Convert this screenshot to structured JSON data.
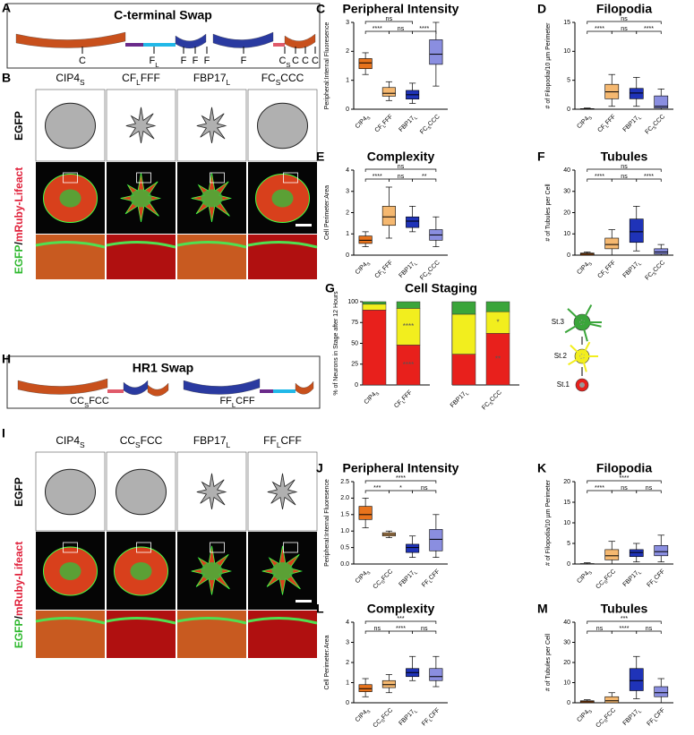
{
  "panel_a": {
    "letter": "A",
    "title": "C-terminal Swap",
    "domain_labels": [
      [
        "C"
      ],
      [
        "F",
        "L"
      ],
      [
        "F"
      ],
      [
        "F"
      ],
      [
        "F"
      ],
      [
        "F"
      ],
      [
        "C",
        "S"
      ],
      [
        "C"
      ],
      [
        "C"
      ],
      [
        "C"
      ]
    ]
  },
  "panel_b": {
    "letter": "B",
    "columns": [
      [
        "CIP4",
        "S"
      ],
      [
        "CF",
        "L",
        "FFF"
      ],
      [
        "FBP17",
        "L"
      ],
      [
        "FC",
        "S",
        "CCC"
      ]
    ],
    "row_label": "EGFP",
    "merge_label": [
      "EGFP",
      "/",
      "mRuby-Lifeact"
    ]
  },
  "panel_h": {
    "letter": "H",
    "title": "HR1 Swap",
    "construct_labels": [
      [
        "CC",
        "S",
        "FCC"
      ],
      [
        "FF",
        "L",
        "CFF"
      ]
    ]
  },
  "panel_i": {
    "letter": "I",
    "columns": [
      [
        "CIP4",
        "S"
      ],
      [
        "CC",
        "S",
        "FCC"
      ],
      [
        "FBP17",
        "L"
      ],
      [
        "FF",
        "L",
        "CFF"
      ]
    ],
    "row_label": "EGFP",
    "merge_label": [
      "EGFP",
      "/",
      "mRuby-Lifeact"
    ]
  },
  "chart_data": [
    {
      "letter": "C",
      "type": "box",
      "title": "Peripheral Intensity",
      "y_label": "Peripheral:Internal Fluoresence",
      "categories": [
        [
          "CIP4",
          "S"
        ],
        [
          "CF",
          "L",
          "FFF"
        ],
        [
          "FBP17",
          "L"
        ],
        [
          "FC",
          "S",
          "CCC"
        ]
      ],
      "colors": [
        "#e8731c",
        "#f5b870",
        "#1f33b8",
        "#8a8ee0"
      ],
      "boxes": [
        [
          1.2,
          1.4,
          1.6,
          1.75,
          1.95
        ],
        [
          0.3,
          0.45,
          0.55,
          0.75,
          0.95
        ],
        [
          0.2,
          0.35,
          0.5,
          0.65,
          0.9
        ],
        [
          0.8,
          1.55,
          1.9,
          2.4,
          3.0
        ]
      ],
      "ylim": [
        0,
        3
      ],
      "yticks": [
        0,
        1,
        2,
        3
      ],
      "brackets": [
        {
          "from": 0,
          "to": 2,
          "label": "ns"
        },
        {
          "from": 0,
          "to": 1,
          "label": "****"
        },
        {
          "from": 1,
          "to": 2,
          "label": "ns"
        },
        {
          "from": 2,
          "to": 3,
          "label": "****"
        }
      ]
    },
    {
      "letter": "D",
      "type": "box",
      "title": "Filopodia",
      "y_label": "# of Filopodia/10 µm Perimeter",
      "categories": [
        [
          "CIP4",
          "S"
        ],
        [
          "CF",
          "L",
          "FFF"
        ],
        [
          "FBP17",
          "L"
        ],
        [
          "FC",
          "S",
          "CCC"
        ]
      ],
      "colors": [
        "#e8731c",
        "#f5b870",
        "#1f33b8",
        "#8a8ee0"
      ],
      "boxes": [
        [
          0,
          0,
          0,
          0.1,
          0.2
        ],
        [
          0.5,
          1.8,
          3,
          4.3,
          6
        ],
        [
          0.5,
          1.8,
          2.8,
          3.6,
          5.5
        ],
        [
          0,
          0.2,
          0.5,
          2.3,
          3.5
        ]
      ],
      "ylim": [
        0,
        15
      ],
      "yticks": [
        0,
        5,
        10,
        15
      ],
      "brackets": [
        {
          "from": 0,
          "to": 3,
          "label": "ns"
        },
        {
          "from": 0,
          "to": 1,
          "label": "****"
        },
        {
          "from": 1,
          "to": 2,
          "label": "ns"
        },
        {
          "from": 2,
          "to": 3,
          "label": "****"
        }
      ]
    },
    {
      "letter": "E",
      "type": "box",
      "title": "Complexity",
      "y_label": "Cell Perimeter:Area",
      "categories": [
        [
          "CIP4",
          "S"
        ],
        [
          "CF",
          "L",
          "FFF"
        ],
        [
          "FBP17",
          "L"
        ],
        [
          "FC",
          "S",
          "CCC"
        ]
      ],
      "colors": [
        "#e8731c",
        "#f5b870",
        "#1f33b8",
        "#8a8ee0"
      ],
      "boxes": [
        [
          0.4,
          0.55,
          0.7,
          0.9,
          1.1
        ],
        [
          0.8,
          1.4,
          1.8,
          2.3,
          3.2
        ],
        [
          1.1,
          1.3,
          1.6,
          1.8,
          2.3
        ],
        [
          0.4,
          0.7,
          0.95,
          1.2,
          1.8
        ]
      ],
      "ylim": [
        0,
        4
      ],
      "yticks": [
        0,
        1,
        2,
        3,
        4
      ],
      "brackets": [
        {
          "from": 0,
          "to": 3,
          "label": "ns"
        },
        {
          "from": 0,
          "to": 1,
          "label": "****"
        },
        {
          "from": 1,
          "to": 2,
          "label": "ns"
        },
        {
          "from": 2,
          "to": 3,
          "label": "**"
        }
      ]
    },
    {
      "letter": "F",
      "type": "box",
      "title": "Tubules",
      "y_label": "# of Tubules per Cell",
      "categories": [
        [
          "CIP4",
          "S"
        ],
        [
          "CF",
          "L",
          "FFF"
        ],
        [
          "FBP17",
          "L"
        ],
        [
          "FC",
          "S",
          "CCC"
        ]
      ],
      "colors": [
        "#e8731c",
        "#f5b870",
        "#1f33b8",
        "#8a8ee0"
      ],
      "boxes": [
        [
          0,
          0,
          0.5,
          1,
          1.5
        ],
        [
          0,
          3,
          5,
          8,
          12
        ],
        [
          2,
          6,
          11,
          17,
          23
        ],
        [
          0,
          0.5,
          1.5,
          3,
          5
        ]
      ],
      "ylim": [
        0,
        40
      ],
      "yticks": [
        0,
        10,
        20,
        30,
        40
      ],
      "brackets": [
        {
          "from": 0,
          "to": 3,
          "label": "ns"
        },
        {
          "from": 0,
          "to": 1,
          "label": "****"
        },
        {
          "from": 1,
          "to": 2,
          "label": "ns"
        },
        {
          "from": 2,
          "to": 3,
          "label": "****"
        }
      ]
    },
    {
      "letter": "G",
      "type": "stacked_bar",
      "title": "Cell Staging",
      "y_label": "% of Neurons in Stage after 12 Hours",
      "categories": [
        [
          "CIP4",
          "S"
        ],
        [
          "CF",
          "L",
          "FFF"
        ],
        [
          "FBP17",
          "L"
        ],
        [
          "FC",
          "S",
          "CCC"
        ]
      ],
      "series": [
        {
          "name": "St.1",
          "color": "#e8201c",
          "values": [
            90,
            48,
            37,
            62
          ]
        },
        {
          "name": "St.2",
          "color": "#f2ee1e",
          "values": [
            7,
            44,
            48,
            26
          ]
        },
        {
          "name": "St.3",
          "color": "#3aa53a",
          "values": [
            3,
            8,
            15,
            12
          ]
        }
      ],
      "ylim": [
        0,
        100
      ],
      "yticks": [
        0,
        25,
        50,
        75,
        100
      ],
      "annotations": [
        {
          "category": 1,
          "series": 0,
          "label": "****"
        },
        {
          "category": 1,
          "series": 1,
          "label": "****"
        },
        {
          "category": 3,
          "series": 0,
          "label": "**"
        },
        {
          "category": 3,
          "series": 1,
          "label": "*"
        }
      ]
    },
    {
      "letter": "J",
      "type": "box",
      "title": "Peripheral Intensity",
      "y_label": "Peripheral:Internal Fluoresence",
      "categories": [
        [
          "CIP4",
          "S"
        ],
        [
          "CC",
          "S",
          "FCC"
        ],
        [
          "FBP17",
          "L"
        ],
        [
          "FF",
          "L",
          "CFF"
        ]
      ],
      "colors": [
        "#e8731c",
        "#f5b870",
        "#1f33b8",
        "#8a8ee0"
      ],
      "boxes": [
        [
          1.1,
          1.35,
          1.5,
          1.75,
          2.0
        ],
        [
          0.8,
          0.85,
          0.9,
          0.95,
          1.0
        ],
        [
          0.2,
          0.35,
          0.5,
          0.6,
          0.85
        ],
        [
          0.2,
          0.4,
          0.75,
          1.05,
          1.5
        ]
      ],
      "ylim": [
        0,
        2.5
      ],
      "yticks": [
        {
          "value": 0,
          "label": "0.0"
        },
        {
          "value": 0.5,
          "label": "0.5"
        },
        {
          "value": 1,
          "label": "1.0"
        },
        {
          "value": 1.5,
          "label": "1.5"
        },
        {
          "value": 2,
          "label": "2.0"
        },
        {
          "value": 2.5,
          "label": "2.5"
        }
      ],
      "brackets": [
        {
          "from": 0,
          "to": 3,
          "label": "****"
        },
        {
          "from": 0,
          "to": 1,
          "label": "***"
        },
        {
          "from": 1,
          "to": 2,
          "label": "*"
        },
        {
          "from": 2,
          "to": 3,
          "label": "ns"
        }
      ]
    },
    {
      "letter": "K",
      "type": "box",
      "title": "Filopodia",
      "y_label": "# of Filopodia/10 µm Perimeter",
      "categories": [
        [
          "CIP4",
          "S"
        ],
        [
          "CC",
          "S",
          "FCC"
        ],
        [
          "FBP17",
          "L"
        ],
        [
          "FF",
          "L",
          "CFF"
        ]
      ],
      "colors": [
        "#e8731c",
        "#f5b870",
        "#1f33b8",
        "#8a8ee0"
      ],
      "boxes": [
        [
          0,
          0,
          0,
          0.1,
          0.3
        ],
        [
          0,
          1,
          2,
          3.5,
          5.5
        ],
        [
          0.5,
          1.8,
          2.8,
          3.5,
          5
        ],
        [
          0.5,
          2,
          3,
          4.5,
          7
        ]
      ],
      "ylim": [
        0,
        20
      ],
      "yticks": [
        0,
        5,
        10,
        15,
        20
      ],
      "brackets": [
        {
          "from": 0,
          "to": 3,
          "label": "****"
        },
        {
          "from": 0,
          "to": 1,
          "label": "****"
        },
        {
          "from": 1,
          "to": 2,
          "label": "ns"
        },
        {
          "from": 2,
          "to": 3,
          "label": "ns"
        }
      ]
    },
    {
      "letter": "L",
      "type": "box",
      "title": "Complexity",
      "y_label": "Cell Perimeter:Area",
      "categories": [
        [
          "CIP4",
          "S"
        ],
        [
          "CC",
          "S",
          "FCC"
        ],
        [
          "FBP17",
          "L"
        ],
        [
          "FF",
          "L",
          "CFF"
        ]
      ],
      "colors": [
        "#e8731c",
        "#f5b870",
        "#1f33b8",
        "#8a8ee0"
      ],
      "boxes": [
        [
          0.3,
          0.55,
          0.7,
          0.9,
          1.2
        ],
        [
          0.5,
          0.75,
          0.9,
          1.1,
          1.4
        ],
        [
          1.1,
          1.3,
          1.5,
          1.7,
          2.3
        ],
        [
          0.8,
          1.1,
          1.3,
          1.7,
          2.3
        ]
      ],
      "ylim": [
        0,
        4
      ],
      "yticks": [
        0,
        1,
        2,
        3,
        4
      ],
      "brackets": [
        {
          "from": 0,
          "to": 3,
          "label": "***"
        },
        {
          "from": 0,
          "to": 1,
          "label": "ns"
        },
        {
          "from": 1,
          "to": 2,
          "label": "****"
        },
        {
          "from": 2,
          "to": 3,
          "label": "ns"
        }
      ]
    },
    {
      "letter": "M",
      "type": "box",
      "title": "Tubules",
      "y_label": "# of Tubules per Cell",
      "categories": [
        [
          "CIP4",
          "S"
        ],
        [
          "CC",
          "S",
          "FCC"
        ],
        [
          "FBP17",
          "L"
        ],
        [
          "FF",
          "L",
          "CFF"
        ]
      ],
      "colors": [
        "#e8731c",
        "#f5b870",
        "#1f33b8",
        "#8a8ee0"
      ],
      "boxes": [
        [
          0,
          0,
          0.5,
          1,
          1.5
        ],
        [
          0,
          0,
          1,
          3,
          5
        ],
        [
          2,
          6,
          11,
          17,
          23
        ],
        [
          0,
          3,
          5,
          8,
          12
        ]
      ],
      "ylim": [
        0,
        40
      ],
      "yticks": [
        0,
        10,
        20,
        30,
        40
      ],
      "brackets": [
        {
          "from": 0,
          "to": 3,
          "label": "***"
        },
        {
          "from": 0,
          "to": 1,
          "label": "ns"
        },
        {
          "from": 1,
          "to": 2,
          "label": "****"
        },
        {
          "from": 2,
          "to": 3,
          "label": "ns"
        }
      ]
    }
  ]
}
